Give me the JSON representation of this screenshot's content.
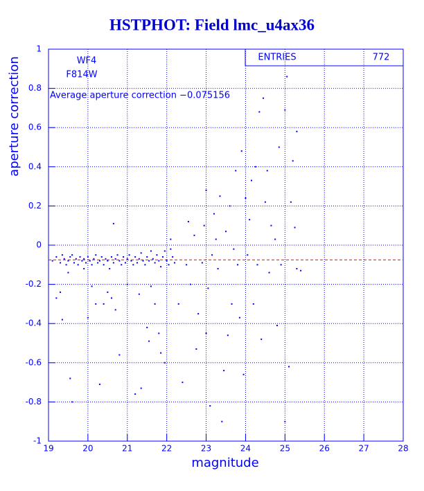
{
  "chart_data": {
    "type": "scatter",
    "title": "HSTPHOT: Field lmc_u4ax36",
    "x_label": "magnitude",
    "y_label": "aperture correction",
    "annotations": [
      "WF4",
      "F814W"
    ],
    "average": {
      "value": -0.075156,
      "label": "Average aperture correction −0.075156",
      "color": "#ff0000"
    },
    "stats": {
      "label": "ENTRIES",
      "value": 772
    },
    "color": "#0000ff",
    "grid": true,
    "xlim": [
      19,
      28
    ],
    "xticks": [
      19,
      20,
      21,
      22,
      23,
      24,
      25,
      26,
      27,
      28
    ],
    "ylim": [
      -1,
      1
    ],
    "yticks": [
      -1,
      -0.8,
      -0.6,
      -0.4,
      -0.2,
      0,
      0.2,
      0.4,
      0.6,
      0.8,
      1
    ],
    "x": [
      19.1,
      19.2,
      19.3,
      19.35,
      19.4,
      19.45,
      19.5,
      19.55,
      19.6,
      19.65,
      19.7,
      19.75,
      19.8,
      19.85,
      19.9,
      19.95,
      20.0,
      20.05,
      20.1,
      20.15,
      20.2,
      20.25,
      20.3,
      20.35,
      20.4,
      20.45,
      20.5,
      20.55,
      20.6,
      20.65,
      20.7,
      20.75,
      20.8,
      20.85,
      20.9,
      20.95,
      21.0,
      21.05,
      21.1,
      21.15,
      21.2,
      21.25,
      21.3,
      21.35,
      21.4,
      21.45,
      21.5,
      21.55,
      21.6,
      21.65,
      21.7,
      21.75,
      21.8,
      21.85,
      21.9,
      21.95,
      22.0,
      22.05,
      22.1,
      22.15,
      22.2,
      19.2,
      19.3,
      19.35,
      19.5,
      19.55,
      19.6,
      19.9,
      20.0,
      20.1,
      20.2,
      20.3,
      20.4,
      20.5,
      20.6,
      20.65,
      20.7,
      20.8,
      21.0,
      21.2,
      21.3,
      21.35,
      21.5,
      21.55,
      21.6,
      21.7,
      21.8,
      21.85,
      21.95,
      22.1,
      22.3,
      22.4,
      22.5,
      22.55,
      22.6,
      22.7,
      22.75,
      22.8,
      22.9,
      22.95,
      23.0,
      23.0,
      23.05,
      23.1,
      23.15,
      23.2,
      23.25,
      23.3,
      23.35,
      23.4,
      23.45,
      23.5,
      23.55,
      23.6,
      23.65,
      23.7,
      23.75,
      23.8,
      23.85,
      23.9,
      23.95,
      24.0,
      24.05,
      24.1,
      24.15,
      24.2,
      24.25,
      24.3,
      24.35,
      24.4,
      24.45,
      24.5,
      24.55,
      24.6,
      24.65,
      24.75,
      24.8,
      24.85,
      24.9,
      25.0,
      25.05,
      25.1,
      25.15,
      25.2,
      25.25,
      25.3,
      25.3,
      25.4,
      25.0
    ],
    "values": [
      -0.08,
      -0.06,
      -0.09,
      -0.05,
      -0.07,
      -0.1,
      -0.08,
      -0.06,
      -0.05,
      -0.09,
      -0.07,
      -0.1,
      -0.06,
      -0.08,
      -0.07,
      -0.09,
      -0.06,
      -0.08,
      -0.1,
      -0.07,
      -0.05,
      -0.09,
      -0.08,
      -0.06,
      -0.1,
      -0.07,
      -0.08,
      -0.12,
      -0.06,
      -0.09,
      -0.07,
      -0.05,
      -0.08,
      -0.1,
      -0.06,
      -0.09,
      -0.07,
      -0.05,
      -0.08,
      -0.1,
      -0.06,
      -0.09,
      -0.07,
      -0.04,
      -0.08,
      -0.1,
      -0.06,
      -0.08,
      -0.03,
      -0.07,
      -0.09,
      -0.05,
      -0.08,
      -0.11,
      -0.06,
      -0.03,
      -0.08,
      -0.1,
      -0.02,
      -0.06,
      -0.09,
      -0.27,
      -0.24,
      -0.38,
      -0.14,
      -0.68,
      -0.8,
      -0.12,
      -0.37,
      -0.21,
      -0.3,
      -0.71,
      -0.3,
      -0.24,
      -0.27,
      0.11,
      -0.33,
      -0.56,
      -0.2,
      -0.76,
      -0.25,
      -0.73,
      -0.42,
      -0.49,
      -0.21,
      -0.3,
      -0.45,
      -0.55,
      -0.6,
      0.03,
      -0.3,
      -0.7,
      -0.1,
      0.12,
      -0.2,
      0.05,
      -0.53,
      -0.35,
      -0.09,
      0.1,
      0.28,
      -0.45,
      -0.22,
      -0.82,
      -0.05,
      0.16,
      0.03,
      -0.12,
      0.25,
      -0.9,
      -0.64,
      0.07,
      -0.46,
      0.2,
      -0.3,
      -0.02,
      0.38,
      -0.1,
      -0.37,
      0.48,
      -0.66,
      0.24,
      -0.05,
      0.13,
      0.33,
      -0.3,
      0.4,
      -0.1,
      0.68,
      -0.48,
      0.75,
      0.22,
      0.38,
      -0.14,
      0.1,
      0.03,
      -0.41,
      0.5,
      -0.1,
      0.69,
      0.86,
      -0.62,
      0.22,
      0.43,
      0.09,
      0.58,
      -0.12,
      -0.13,
      -0.9
    ]
  }
}
